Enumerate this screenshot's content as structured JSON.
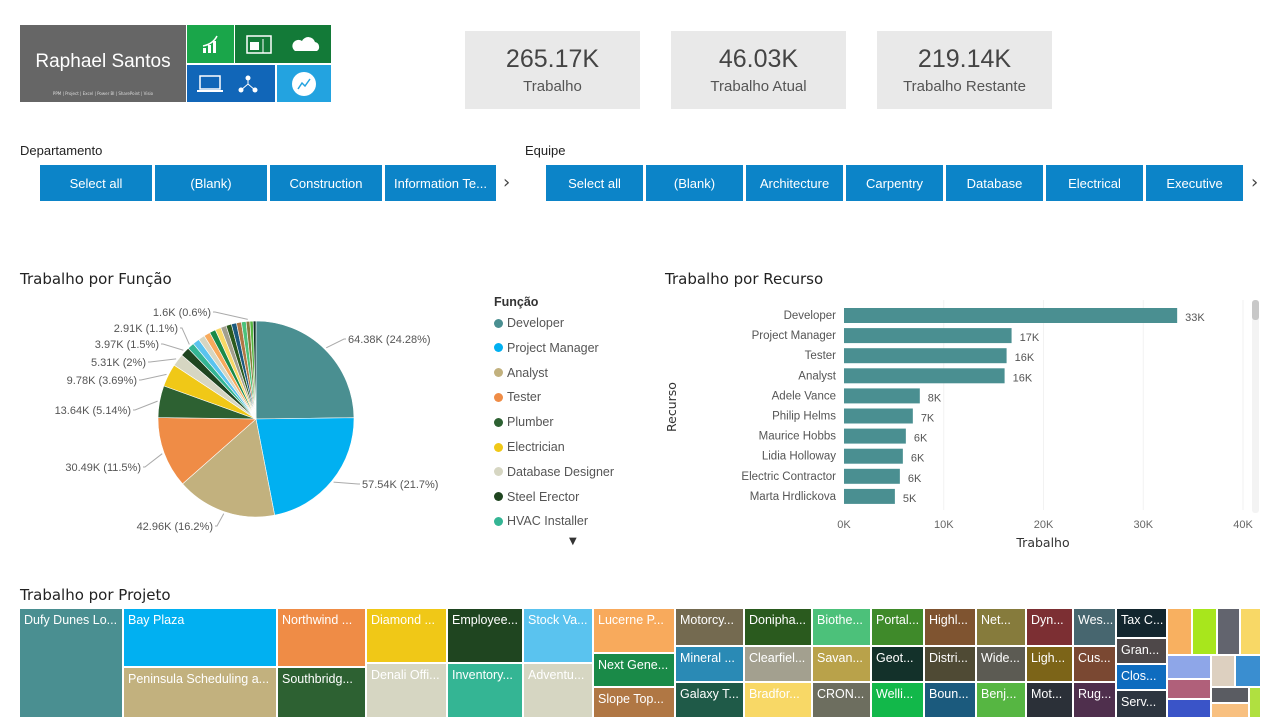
{
  "logo": {
    "name": "Raphael Santos",
    "subtitle": "PPM | Project | Excel | Power BI | SharePoint | Visio",
    "icons": [
      "growth-chart-icon",
      "spreadsheet-icon",
      "cloud-icon",
      "laptop-diagram-icon",
      "hierarchy-icon",
      "line-chart-circle-icon"
    ]
  },
  "kpis": [
    {
      "value": "265.17K",
      "label": "Trabalho"
    },
    {
      "value": "46.03K",
      "label": "Trabalho Atual"
    },
    {
      "value": "219.14K",
      "label": "Trabalho Restante"
    }
  ],
  "slicers": {
    "departamento": {
      "label": "Departamento",
      "options": [
        "Select all",
        "(Blank)",
        "Construction",
        "Information Te..."
      ]
    },
    "equipe": {
      "label": "Equipe",
      "options": [
        "Select all",
        "(Blank)",
        "Architecture",
        "Carpentry",
        "Database",
        "Electrical",
        "Executive"
      ]
    }
  },
  "pie": {
    "title": "Trabalho por Função",
    "legend_title": "Função",
    "legend": [
      {
        "name": "Developer",
        "color": "#4a8f91"
      },
      {
        "name": "Project Manager",
        "color": "#01b0f1"
      },
      {
        "name": "Analyst",
        "color": "#c2b17e"
      },
      {
        "name": "Tester",
        "color": "#ef8c46"
      },
      {
        "name": "Plumber",
        "color": "#2d6132"
      },
      {
        "name": "Electrician",
        "color": "#f0c817"
      },
      {
        "name": "Database Designer",
        "color": "#d6d6c2"
      },
      {
        "name": "Steel Erector",
        "color": "#1f4520"
      },
      {
        "name": "HVAC Installer",
        "color": "#34b594"
      }
    ]
  },
  "chart_data": [
    {
      "type": "pie",
      "title": "Trabalho por Função",
      "slices": [
        {
          "name": "Developer",
          "value": 64.38,
          "label": "64.38K (24.28%)",
          "color": "#4a8f91"
        },
        {
          "name": "Project Manager",
          "value": 57.54,
          "label": "57.54K (21.7%)",
          "color": "#01b0f1"
        },
        {
          "name": "Analyst",
          "value": 42.96,
          "label": "42.96K (16.2%)",
          "color": "#c2b17e"
        },
        {
          "name": "Tester",
          "value": 30.49,
          "label": "30.49K (11.5%)",
          "color": "#ef8c46"
        },
        {
          "name": "Plumber",
          "value": 13.64,
          "label": "13.64K (5.14%)",
          "color": "#2d6132"
        },
        {
          "name": "Electrician",
          "value": 9.78,
          "label": "9.78K (3.69%)",
          "color": "#f0c817"
        },
        {
          "name": "Database Designer",
          "value": 5.31,
          "label": "5.31K (2%)",
          "color": "#d6d6c2"
        },
        {
          "name": "Steel Erector",
          "value": 3.97,
          "label": "3.97K (1.5%)",
          "color": "#1f4520"
        },
        {
          "name": "HVAC Installer",
          "value": 2.91,
          "label": "2.91K (1.1%)",
          "color": "#34b594"
        },
        {
          "value": 2.9,
          "color": "#5ac3ef"
        },
        {
          "value": 2.8,
          "color": "#d6d6c2"
        },
        {
          "value": 2.7,
          "color": "#f8aa5c"
        },
        {
          "value": 2.6,
          "color": "#1a8a48"
        },
        {
          "value": 2.5,
          "color": "#f8d866"
        },
        {
          "value": 2.4,
          "color": "#a3a08f"
        },
        {
          "value": 2.3,
          "color": "#2a5a1e"
        },
        {
          "value": 2.2,
          "color": "#1b5a7d"
        },
        {
          "value": 2.1,
          "color": "#b07744"
        },
        {
          "value": 2.0,
          "color": "#4cc17a"
        },
        {
          "value": 1.6,
          "label": "1.6K (0.6%)",
          "color": "#867b3c"
        },
        {
          "value": 1.4,
          "color": "#56b642"
        },
        {
          "value": 1.2,
          "color": "#13312a"
        }
      ]
    },
    {
      "type": "bar",
      "title": "Trabalho por Recurso",
      "xlabel": "Trabalho",
      "ylabel": "Recurso",
      "xlim": [
        0,
        40000
      ],
      "xticks": [
        "0K",
        "10K",
        "20K",
        "30K",
        "40K"
      ],
      "color": "#4a8f91",
      "categories": [
        "Developer",
        "Project Manager",
        "Tester",
        "Analyst",
        "Adele Vance",
        "Philip Helms",
        "Maurice Hobbs",
        "Lidia Holloway",
        "Electric Contractor",
        "Marta Hrdlickova"
      ],
      "values": [
        33400,
        16800,
        16300,
        16100,
        7600,
        6900,
        6200,
        5900,
        5600,
        5100
      ],
      "labels": [
        "33K",
        "17K",
        "16K",
        "16K",
        "8K",
        "7K",
        "6K",
        "6K",
        "6K",
        "5K"
      ]
    }
  ],
  "treemap": {
    "title": "Trabalho por Projeto",
    "tiles": [
      {
        "label": "Dufy Dunes Lo...",
        "color": "#4a8f91"
      },
      {
        "label": "Bay Plaza",
        "color": "#01b0f1"
      },
      {
        "label": "Peninsula Scheduling a...",
        "color": "#c2b17e"
      },
      {
        "label": "Northwind ...",
        "color": "#ef8c46"
      },
      {
        "label": "Southbridg...",
        "color": "#2d6132"
      },
      {
        "label": "Diamond ...",
        "color": "#f0c817"
      },
      {
        "label": "Denali Offi...",
        "color": "#d6d6c2"
      },
      {
        "label": "Employee...",
        "color": "#1f4520"
      },
      {
        "label": "Inventory...",
        "color": "#34b594"
      },
      {
        "label": "Stock Va...",
        "color": "#5ac3ef"
      },
      {
        "label": "Adventu...",
        "color": "#d6d6c2"
      },
      {
        "label": "Lucerne P...",
        "color": "#f8aa5c"
      },
      {
        "label": "Next Gene...",
        "color": "#1a8a48"
      },
      {
        "label": "Slope Top...",
        "color": "#b07744"
      },
      {
        "label": "Motorcy...",
        "color": "#746a50"
      },
      {
        "label": "Mineral ...",
        "color": "#2a8ab5"
      },
      {
        "label": "Galaxy T...",
        "color": "#1f5a48"
      },
      {
        "label": "Donipha...",
        "color": "#2a5a1e"
      },
      {
        "label": "Clearfiel...",
        "color": "#a3a08f"
      },
      {
        "label": "Bradfor...",
        "color": "#f8d866"
      },
      {
        "label": "Biothe...",
        "color": "#4cc17a"
      },
      {
        "label": "Savan...",
        "color": "#b9a24a"
      },
      {
        "label": "CRON...",
        "color": "#6d6e5f"
      },
      {
        "label": "Portal...",
        "color": "#3f8a2a"
      },
      {
        "label": "Geot...",
        "color": "#13312a"
      },
      {
        "label": "Welli...",
        "color": "#12b84a"
      },
      {
        "label": "Highl...",
        "color": "#7f5430"
      },
      {
        "label": "Distri...",
        "color": "#4f4a34"
      },
      {
        "label": "Boun...",
        "color": "#1b5a7d"
      },
      {
        "label": "Net...",
        "color": "#867b3c"
      },
      {
        "label": "Wide...",
        "color": "#5c5b53"
      },
      {
        "label": "Benj...",
        "color": "#56b642"
      },
      {
        "label": "Dyn...",
        "color": "#7c2f33"
      },
      {
        "label": "Ligh...",
        "color": "#7c6418"
      },
      {
        "label": "Mot...",
        "color": "#2b3038"
      },
      {
        "label": "Wes...",
        "color": "#47666f"
      },
      {
        "label": "Cus...",
        "color": "#7a4832"
      },
      {
        "label": "Rug...",
        "color": "#4f2f4d"
      },
      {
        "label": "Tax C...",
        "color": "#13262e"
      },
      {
        "label": "Gran...",
        "color": "#4e4849"
      },
      {
        "label": "Clos...",
        "color": "#0e6cbf"
      },
      {
        "label": "Serv...",
        "color": "#2d3540"
      },
      {
        "label": "",
        "color": "#f8b060"
      },
      {
        "label": "",
        "color": "#a8e61c"
      },
      {
        "label": "",
        "color": "#62646e"
      },
      {
        "label": "",
        "color": "#f8d866"
      },
      {
        "label": "",
        "color": "#8ea6e8"
      },
      {
        "label": "",
        "color": "#ddd0c0"
      },
      {
        "label": "",
        "color": "#3a8ed0"
      },
      {
        "label": "",
        "color": "#b0607a"
      },
      {
        "label": "",
        "color": "#5a5c62"
      },
      {
        "label": "",
        "color": "#3a54c8"
      },
      {
        "label": "",
        "color": "#f8c080"
      },
      {
        "label": "",
        "color": "#b0e040"
      }
    ]
  }
}
